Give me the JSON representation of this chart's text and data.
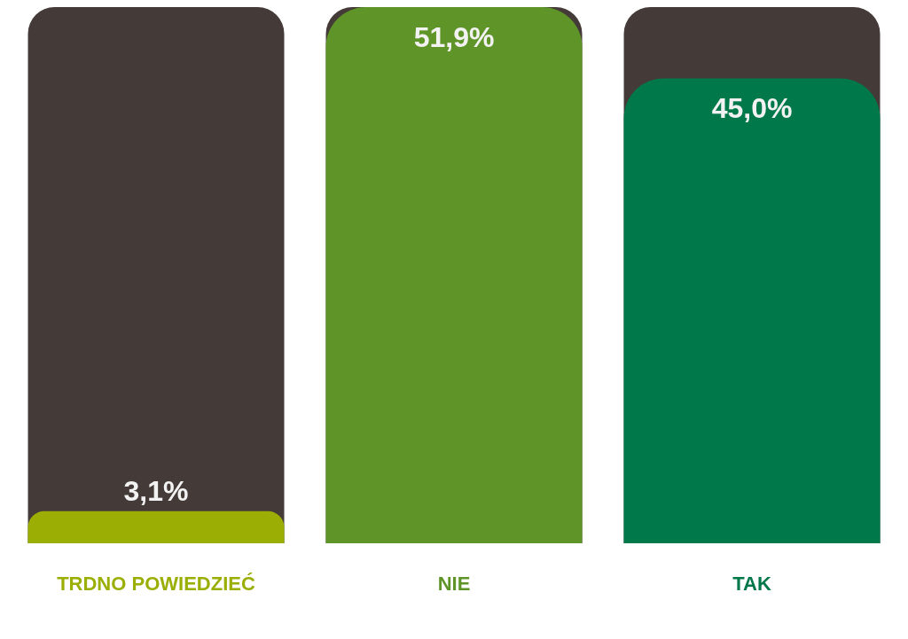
{
  "chart_data": {
    "type": "bar",
    "categories": [
      "TRDNO POWIEDZIEĆ",
      "NIE",
      "TAK"
    ],
    "values": [
      3.1,
      51.9,
      45.0
    ],
    "value_labels": [
      "3,1%",
      "51,9%",
      "45,0%"
    ],
    "colors": [
      "#9aae04",
      "#5e9428",
      "#00784a"
    ],
    "grid": false,
    "legend": false
  }
}
